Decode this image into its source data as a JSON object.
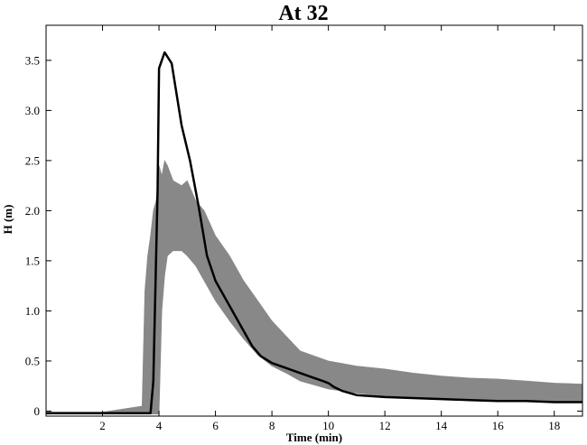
{
  "chart_data": {
    "type": "line",
    "title": "At 32",
    "xlabel": "Time (min)",
    "ylabel": "H (m)",
    "xlim": [
      0,
      19
    ],
    "ylim": [
      -0.05,
      3.85
    ],
    "x_ticks": [
      2,
      4,
      6,
      8,
      10,
      12,
      14,
      16,
      18
    ],
    "x_tick_labels": [
      "2",
      "4",
      "6",
      "8",
      "10",
      "12",
      "14",
      "16",
      "18"
    ],
    "y_ticks": [
      0,
      0.5,
      1.0,
      1.5,
      2.0,
      2.5,
      3.0,
      3.5
    ],
    "y_tick_labels": [
      "0",
      "0.5",
      "1.0",
      "1.5",
      "2.0",
      "2.5",
      "3.0",
      "3.5"
    ],
    "grid": false,
    "series": [
      {
        "style": "band",
        "color": "#888888",
        "x": [
          0.0,
          2.0,
          3.4,
          3.5,
          3.6,
          3.7,
          3.8,
          3.9,
          4.0,
          4.1,
          4.2,
          4.3,
          4.5,
          4.8,
          5.0,
          5.3,
          5.6,
          6.0,
          6.5,
          7.0,
          7.5,
          8.0,
          8.5,
          9.0,
          10.0,
          11.0,
          12.0,
          13.0,
          14.0,
          15.0,
          16.0,
          17.0,
          18.0,
          19.0
        ],
        "lower": [
          -0.03,
          -0.03,
          -0.03,
          -0.03,
          -0.03,
          -0.03,
          -0.03,
          -0.03,
          -0.03,
          1.0,
          1.35,
          1.55,
          1.6,
          1.6,
          1.55,
          1.45,
          1.3,
          1.1,
          0.9,
          0.72,
          0.56,
          0.45,
          0.38,
          0.3,
          0.22,
          0.18,
          0.15,
          0.13,
          0.12,
          0.11,
          0.1,
          0.1,
          0.09,
          0.09
        ],
        "upper": [
          -0.01,
          -0.01,
          0.05,
          1.2,
          1.55,
          1.75,
          2.0,
          2.1,
          2.45,
          2.35,
          2.5,
          2.45,
          2.3,
          2.25,
          2.3,
          2.1,
          2.0,
          1.75,
          1.55,
          1.3,
          1.1,
          0.9,
          0.75,
          0.6,
          0.5,
          0.45,
          0.42,
          0.38,
          0.35,
          0.33,
          0.32,
          0.3,
          0.28,
          0.27
        ]
      },
      {
        "style": "line",
        "color": "#000000",
        "x": [
          0.0,
          2.0,
          3.7,
          3.8,
          3.95,
          4.0,
          4.2,
          4.45,
          4.8,
          5.1,
          5.4,
          5.7,
          6.0,
          6.5,
          7.0,
          7.3,
          7.6,
          8.0,
          8.5,
          9.0,
          9.5,
          9.8,
          10.0,
          10.2,
          10.5,
          11.0,
          12.0,
          13.0,
          14.0,
          15.0,
          16.0,
          17.0,
          18.0,
          19.0
        ],
        "y": [
          -0.02,
          -0.02,
          -0.02,
          0.3,
          2.2,
          3.42,
          3.58,
          3.47,
          2.85,
          2.5,
          2.05,
          1.55,
          1.3,
          1.05,
          0.8,
          0.65,
          0.55,
          0.48,
          0.43,
          0.38,
          0.33,
          0.3,
          0.28,
          0.24,
          0.2,
          0.16,
          0.14,
          0.13,
          0.12,
          0.11,
          0.1,
          0.1,
          0.09,
          0.09
        ]
      }
    ]
  }
}
